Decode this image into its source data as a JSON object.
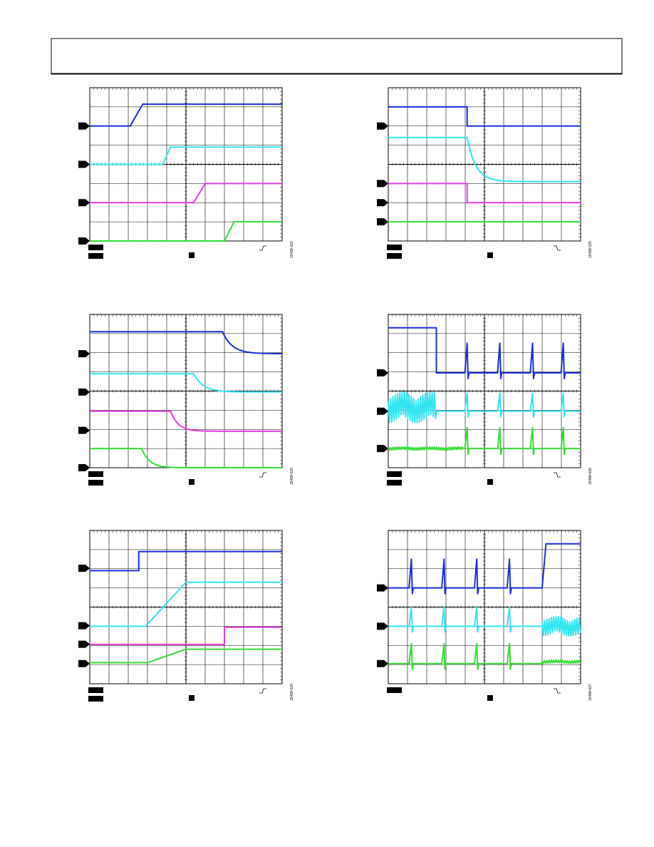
{
  "figures": [
    {
      "id": "15498-022"
    },
    {
      "id": "15498-025"
    },
    {
      "id": "15498-023"
    },
    {
      "id": "15498-026"
    },
    {
      "id": "15498-024"
    },
    {
      "id": "15498-027"
    }
  ]
}
